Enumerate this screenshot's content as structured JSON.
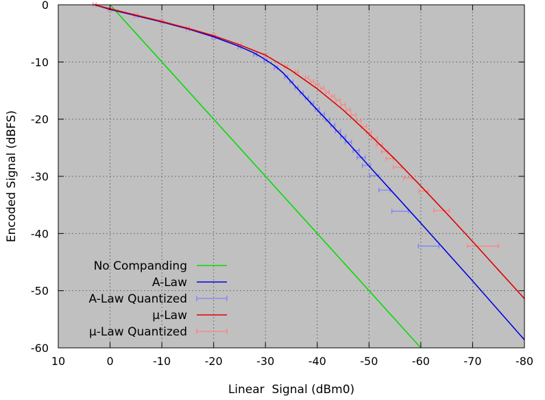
{
  "chart_data": {
    "type": "line",
    "xlabel": "Linear  Signal (dBm0)",
    "ylabel": "Encoded Signal (dBFS)",
    "xlim": [
      10,
      -80
    ],
    "ylim": [
      -60,
      0
    ],
    "x_reversed": true,
    "xticks": [
      10,
      0,
      -10,
      -20,
      -30,
      -40,
      -50,
      -60,
      -70,
      -80
    ],
    "yticks": [
      0,
      -10,
      -20,
      -30,
      -40,
      -50,
      -60
    ],
    "grid": true,
    "legend_position": "bottom-left",
    "background": "#c0c0c0",
    "series": [
      {
        "name": "No Companding",
        "color": "#00dd00",
        "kind": "line",
        "points": [
          [
            0,
            0
          ],
          [
            -60,
            -60
          ]
        ]
      },
      {
        "name": "A-Law",
        "color": "#0000dd",
        "kind": "line",
        "points": [
          [
            3,
            0
          ],
          [
            0,
            -0.8
          ],
          [
            -5,
            -1.9
          ],
          [
            -10,
            -3.0
          ],
          [
            -15,
            -4.2
          ],
          [
            -20,
            -5.6
          ],
          [
            -25,
            -7.3
          ],
          [
            -28,
            -8.5
          ],
          [
            -30,
            -9.6
          ],
          [
            -32,
            -10.8
          ],
          [
            -33.5,
            -12.0
          ],
          [
            -36,
            -14.5
          ],
          [
            -40,
            -18.4
          ],
          [
            -45,
            -23.2
          ],
          [
            -50,
            -28.2
          ],
          [
            -55,
            -33.2
          ],
          [
            -60,
            -38.2
          ],
          [
            -70,
            -48.3
          ],
          [
            -80,
            -58.6
          ]
        ]
      },
      {
        "name": "A-Law Quantized",
        "color": "#8080ff",
        "kind": "errorbar",
        "points": [
          [
            3,
            0,
            0.3
          ],
          [
            0,
            -0.8,
            0.3
          ],
          [
            -5,
            -1.9,
            0.3
          ],
          [
            -10,
            -3.0,
            0.3
          ],
          [
            -15,
            -4.2,
            0.3
          ],
          [
            -20,
            -5.7,
            0.3
          ],
          [
            -25,
            -7.4,
            0.3
          ],
          [
            -28,
            -8.7,
            0.3
          ],
          [
            -30,
            -9.8,
            0.3
          ],
          [
            -32,
            -11.0,
            0.3
          ],
          [
            -34,
            -12.6,
            0.3
          ],
          [
            -35,
            -13.5,
            0.3
          ],
          [
            -36,
            -14.5,
            0.3
          ],
          [
            -37,
            -15.4,
            0.3
          ],
          [
            -38,
            -16.3,
            0.3
          ],
          [
            -39,
            -17.2,
            0.3
          ],
          [
            -40,
            -18.2,
            0.4
          ],
          [
            -41,
            -19.1,
            0.4
          ],
          [
            -42,
            -20.1,
            0.4
          ],
          [
            -43,
            -21.1,
            0.4
          ],
          [
            -44,
            -22.1,
            0.5
          ],
          [
            -45,
            -23.1,
            0.5
          ],
          [
            -46,
            -24.0,
            0.6
          ],
          [
            -47.5,
            -25.5,
            0.6
          ],
          [
            -48.5,
            -26.7,
            0.8
          ],
          [
            -49.5,
            -28.1,
            0.8
          ],
          [
            -51,
            -29.9,
            0.9
          ],
          [
            -53,
            -32.4,
            1.1
          ],
          [
            -56,
            -36.1,
            1.6
          ],
          [
            -61.5,
            -42.2,
            2.0
          ]
        ]
      },
      {
        "name": "μ-Law",
        "color": "#dd0000",
        "kind": "line",
        "points": [
          [
            3,
            0
          ],
          [
            0,
            -0.7
          ],
          [
            -5,
            -1.8
          ],
          [
            -10,
            -2.9
          ],
          [
            -15,
            -4.1
          ],
          [
            -20,
            -5.4
          ],
          [
            -25,
            -7.0
          ],
          [
            -30,
            -8.8
          ],
          [
            -35,
            -11.5
          ],
          [
            -40,
            -14.7
          ],
          [
            -45,
            -18.4
          ],
          [
            -50,
            -22.6
          ],
          [
            -55,
            -27.0
          ],
          [
            -60,
            -31.7
          ],
          [
            -65,
            -36.5
          ],
          [
            -70,
            -41.4
          ],
          [
            -75,
            -46.4
          ],
          [
            -80,
            -51.4
          ]
        ]
      },
      {
        "name": "μ-Law Quantized",
        "color": "#ff8080",
        "kind": "errorbar",
        "points": [
          [
            3,
            0,
            0.3
          ],
          [
            0,
            -0.7,
            0.3
          ],
          [
            -5,
            -1.8,
            0.3
          ],
          [
            -10,
            -2.9,
            0.3
          ],
          [
            -15,
            -4.1,
            0.3
          ],
          [
            -20,
            -5.4,
            0.3
          ],
          [
            -25,
            -7.0,
            0.3
          ],
          [
            -30,
            -8.8,
            0.3
          ],
          [
            -34,
            -10.8,
            0.3
          ],
          [
            -36,
            -11.8,
            0.3
          ],
          [
            -38,
            -12.8,
            0.3
          ],
          [
            -39,
            -13.4,
            0.3
          ],
          [
            -40,
            -14.0,
            0.3
          ],
          [
            -41,
            -14.6,
            0.3
          ],
          [
            -42,
            -15.3,
            0.3
          ],
          [
            -43,
            -16.0,
            0.3
          ],
          [
            -44,
            -16.7,
            0.4
          ],
          [
            -45,
            -17.5,
            0.4
          ],
          [
            -46,
            -18.4,
            0.4
          ],
          [
            -47,
            -19.3,
            0.5
          ],
          [
            -48,
            -20.3,
            0.5
          ],
          [
            -49,
            -21.3,
            0.5
          ],
          [
            -50,
            -22.3,
            0.5
          ],
          [
            -51,
            -23.4,
            0.6
          ],
          [
            -52,
            -24.5,
            0.6
          ],
          [
            -53,
            -25.7,
            0.6
          ],
          [
            -54,
            -26.9,
            0.7
          ],
          [
            -55.5,
            -28.4,
            0.8
          ],
          [
            -57.5,
            -30.3,
            0.8
          ],
          [
            -60.5,
            -32.6,
            0.9
          ],
          [
            -64,
            -36.0,
            1.5
          ],
          [
            -72,
            -42.2,
            3.0
          ]
        ]
      }
    ]
  }
}
